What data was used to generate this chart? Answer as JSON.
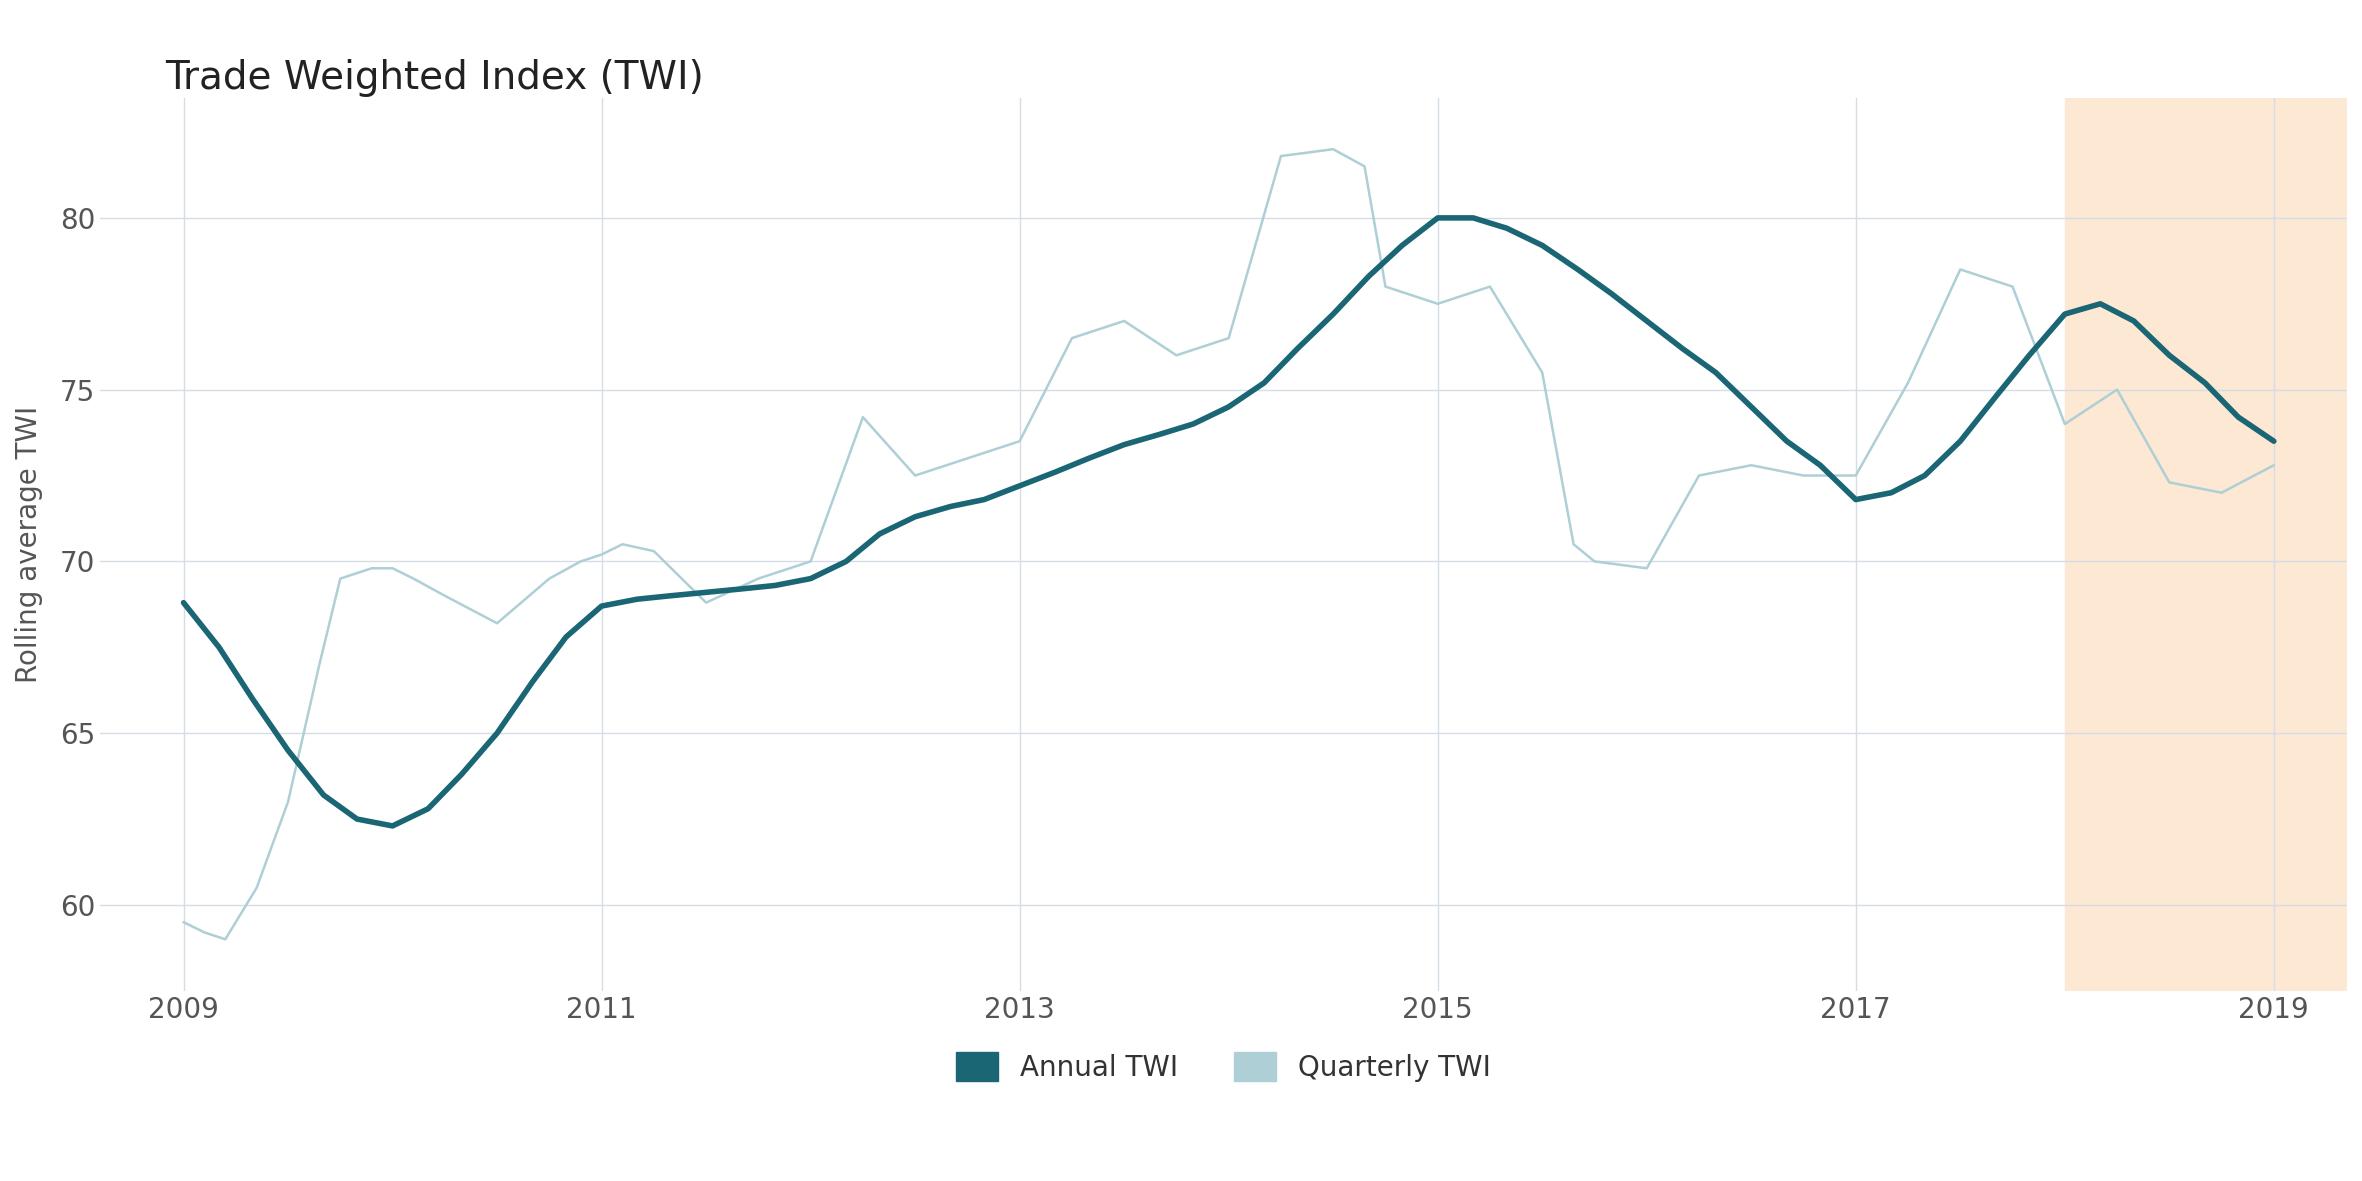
{
  "title": "Trade Weighted Index (TWI)",
  "ylabel": "Rolling average TWI",
  "background_color": "#ffffff",
  "grid_color": "#d4dde5",
  "shading_start": 2018.0,
  "shading_end": 2019.35,
  "shading_color": "#fde8d4",
  "annual_color": "#1a6675",
  "quarterly_color": "#aecfd5",
  "annual_linewidth": 4.0,
  "quarterly_linewidth": 1.8,
  "ylim": [
    57.5,
    83.5
  ],
  "yticks": [
    60,
    65,
    70,
    75,
    80
  ],
  "xlim": [
    2008.6,
    2019.35
  ],
  "xticks": [
    2009,
    2011,
    2013,
    2015,
    2017,
    2019
  ],
  "annual_x": [
    2009.0,
    2009.17,
    2009.33,
    2009.5,
    2009.67,
    2009.83,
    2010.0,
    2010.17,
    2010.33,
    2010.5,
    2010.67,
    2010.83,
    2011.0,
    2011.17,
    2011.33,
    2011.5,
    2011.67,
    2011.83,
    2012.0,
    2012.17,
    2012.33,
    2012.5,
    2012.67,
    2012.83,
    2013.0,
    2013.17,
    2013.33,
    2013.5,
    2013.67,
    2013.83,
    2014.0,
    2014.17,
    2014.33,
    2014.5,
    2014.67,
    2014.83,
    2015.0,
    2015.17,
    2015.33,
    2015.5,
    2015.67,
    2015.83,
    2016.0,
    2016.17,
    2016.33,
    2016.5,
    2016.67,
    2016.83,
    2017.0,
    2017.17,
    2017.33,
    2017.5,
    2017.67,
    2017.83,
    2018.0,
    2018.17,
    2018.33,
    2018.5,
    2018.67,
    2018.83,
    2019.0
  ],
  "annual_y": [
    68.8,
    67.5,
    66.0,
    64.5,
    63.2,
    62.5,
    62.3,
    62.8,
    63.8,
    65.0,
    66.5,
    67.8,
    68.7,
    68.9,
    69.0,
    69.1,
    69.2,
    69.3,
    69.5,
    70.0,
    70.8,
    71.3,
    71.6,
    71.8,
    72.2,
    72.6,
    73.0,
    73.4,
    73.7,
    74.0,
    74.5,
    75.2,
    76.2,
    77.2,
    78.3,
    79.2,
    80.0,
    80.0,
    79.7,
    79.2,
    78.5,
    77.8,
    77.0,
    76.2,
    75.5,
    74.5,
    73.5,
    72.8,
    71.8,
    72.0,
    72.5,
    73.5,
    74.8,
    76.0,
    77.2,
    77.5,
    77.0,
    76.0,
    75.2,
    74.2,
    73.5
  ],
  "quarterly_x": [
    2009.0,
    2009.1,
    2009.2,
    2009.35,
    2009.5,
    2009.65,
    2009.75,
    2009.9,
    2010.0,
    2010.1,
    2010.25,
    2010.5,
    2010.75,
    2010.9,
    2011.0,
    2011.1,
    2011.25,
    2011.5,
    2011.75,
    2012.0,
    2012.25,
    2012.5,
    2012.75,
    2013.0,
    2013.25,
    2013.5,
    2013.75,
    2014.0,
    2014.25,
    2014.5,
    2014.65,
    2014.75,
    2015.0,
    2015.25,
    2015.5,
    2015.65,
    2015.75,
    2016.0,
    2016.25,
    2016.5,
    2016.75,
    2017.0,
    2017.25,
    2017.5,
    2017.75,
    2018.0,
    2018.25,
    2018.5,
    2018.75,
    2019.0
  ],
  "quarterly_y": [
    59.5,
    59.2,
    59.0,
    60.5,
    63.0,
    67.0,
    69.5,
    69.8,
    69.8,
    69.5,
    69.0,
    68.2,
    69.5,
    70.0,
    70.2,
    70.5,
    70.3,
    68.8,
    69.5,
    70.0,
    74.2,
    72.5,
    73.0,
    73.5,
    76.5,
    77.0,
    76.0,
    76.5,
    81.8,
    82.0,
    81.5,
    78.0,
    77.5,
    78.0,
    75.5,
    70.5,
    70.0,
    69.8,
    72.5,
    72.8,
    72.5,
    72.5,
    75.2,
    78.5,
    78.0,
    74.0,
    75.0,
    72.3,
    72.0,
    72.8
  ]
}
